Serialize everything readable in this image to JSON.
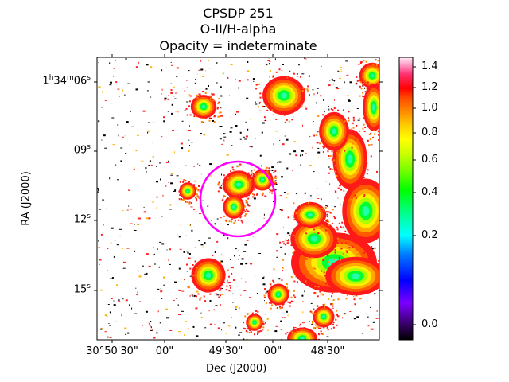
{
  "chart_data": {
    "type": "heatmap",
    "title": [
      "CPSDP 251",
      "O-II/H-alpha",
      "Opacity = indeterminate"
    ],
    "xlabel": "Dec (J2000)",
    "ylabel": "RA (J2000)",
    "x_ticks": [
      "30°50'30\"",
      "00\"",
      "49'30\"",
      "00\"",
      "48'30\""
    ],
    "y_ticks": [
      {
        "main": "1",
        "sup1": "h",
        "mid": "34",
        "sup2": "m",
        "end": "06",
        "sup3": "s"
      },
      {
        "main": "09",
        "sup1": "s"
      },
      {
        "main": "12",
        "sup1": "s"
      },
      {
        "main": "15",
        "sup1": "s"
      }
    ],
    "colorbar": {
      "colormap": "gist_ncar-like",
      "range": [
        -0.1,
        1.48
      ],
      "ticks": [
        0.0,
        0.2,
        0.4,
        0.6,
        0.8,
        1.0,
        1.2,
        1.4
      ],
      "tick_labels": [
        "0.0",
        "0.2",
        "0.4",
        "0.6",
        "0.8",
        "1.0",
        "1.2",
        "1.4"
      ],
      "scale": "nonlinear (stretched toward high values)"
    },
    "annotations": [
      {
        "type": "circle",
        "color": "#ff00ff",
        "description": "aperture around central bright knot"
      }
    ],
    "grid": false,
    "colors": {
      "circle": "#ff00ff",
      "peak": "#00ff33",
      "mid": "#ffcc00",
      "edge": "#ff1a1a",
      "noise": "#000000"
    }
  }
}
